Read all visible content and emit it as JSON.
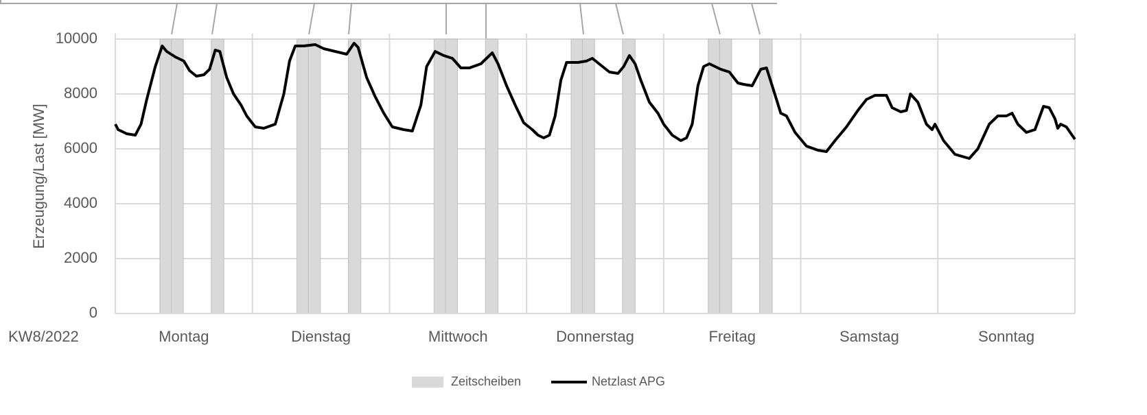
{
  "chart_data": {
    "type": "line",
    "y_label": "Erzeugung/Last [MW]",
    "x_label": "KW8/2022",
    "categories": [
      "Montag",
      "Dienstag",
      "Mittwoch",
      "Donnerstag",
      "Freitag",
      "Samstag",
      "Sonntag"
    ],
    "xlim": [
      0,
      168
    ],
    "xticks": [
      0,
      24,
      48,
      72,
      96,
      120,
      144,
      168
    ],
    "ylim": [
      0,
      10000
    ],
    "yticks": [
      0,
      2000,
      4000,
      6000,
      8000,
      10000
    ],
    "grid": true,
    "legend": "bottom",
    "bands": {
      "name": "Zeitscheiben",
      "color": "#d9d9d9",
      "x0": [
        7.8,
        9.8,
        16.8,
        31.8,
        33.8,
        40.8,
        55.8,
        57.8,
        64.8,
        79.8,
        81.8,
        88.8,
        103.8,
        105.8,
        112.8
      ],
      "x1": [
        9.8,
        11.9,
        19,
        33.8,
        35.9,
        43,
        57.8,
        59.9,
        67,
        81.8,
        83.9,
        91,
        105.8,
        107.9,
        115
      ],
      "values": [
        10000,
        10000,
        10000,
        10000,
        10000,
        10000,
        10000,
        10000,
        10000,
        10000,
        10000,
        10000,
        10000,
        10000,
        10000
      ]
    },
    "series": [
      {
        "name": "Netzlast APG",
        "color": "#000000",
        "x": [
          0,
          0.5,
          2,
          3.5,
          4.5,
          5.5,
          7,
          8.2,
          9,
          10.5,
          12,
          13,
          14.2,
          15.5,
          16.5,
          17.5,
          18.3,
          19.5,
          20.7,
          22,
          23,
          24.5,
          26,
          28,
          29.5,
          30.5,
          31.5,
          33,
          35,
          36.5,
          38.5,
          40.5,
          41.8,
          42.5,
          44,
          45.5,
          47,
          48.5,
          50.5,
          52,
          53.5,
          54.5,
          56,
          57.5,
          59,
          60.5,
          62,
          64,
          65,
          66,
          67,
          68.5,
          70,
          71.5,
          73,
          74,
          75,
          76,
          77,
          78,
          79,
          81,
          82.5,
          83.5,
          85,
          86.5,
          88,
          89,
          90,
          91,
          92,
          93.5,
          95,
          96,
          97.5,
          99,
          100,
          101,
          102,
          103,
          104,
          106,
          107.5,
          109,
          110,
          111.5,
          113,
          114,
          115,
          116.5,
          117.5,
          119,
          121,
          123,
          124.5,
          126,
          128,
          130,
          131.5,
          133,
          135,
          136,
          137.5,
          138.5,
          139.2,
          140.5,
          142,
          143,
          143.5,
          145,
          147,
          149.5,
          151,
          153,
          154.5,
          156,
          157,
          158,
          159.5,
          161,
          162.5,
          163.5,
          164.5,
          165,
          165.5,
          166.5,
          168
        ],
        "values": [
          6900,
          6700,
          6550,
          6500,
          6900,
          7800,
          9000,
          9750,
          9550,
          9350,
          9200,
          8850,
          8650,
          8700,
          8900,
          9600,
          9550,
          8600,
          8000,
          7600,
          7200,
          6800,
          6750,
          6900,
          8000,
          9200,
          9750,
          9750,
          9800,
          9650,
          9550,
          9450,
          9850,
          9700,
          8600,
          7900,
          7300,
          6800,
          6700,
          6650,
          7600,
          9000,
          9550,
          9400,
          9300,
          8950,
          8950,
          9100,
          9300,
          9500,
          9100,
          8300,
          7600,
          6950,
          6700,
          6500,
          6400,
          6500,
          7200,
          8500,
          9150,
          9150,
          9200,
          9300,
          9050,
          8800,
          8750,
          9000,
          9400,
          9100,
          8500,
          7700,
          7300,
          6900,
          6500,
          6300,
          6400,
          6900,
          8300,
          9000,
          9100,
          8900,
          8800,
          8400,
          8350,
          8300,
          8900,
          8950,
          8300,
          7300,
          7200,
          6600,
          6100,
          5950,
          5900,
          6300,
          6800,
          7400,
          7800,
          7950,
          7950,
          7500,
          7350,
          7400,
          8000,
          7700,
          6900,
          6700,
          6900,
          6300,
          5800,
          5650,
          6000,
          6900,
          7200,
          7200,
          7300,
          6900,
          6600,
          6700,
          7550,
          7500,
          7100,
          6750,
          6900,
          6800,
          6350
        ]
      }
    ]
  }
}
